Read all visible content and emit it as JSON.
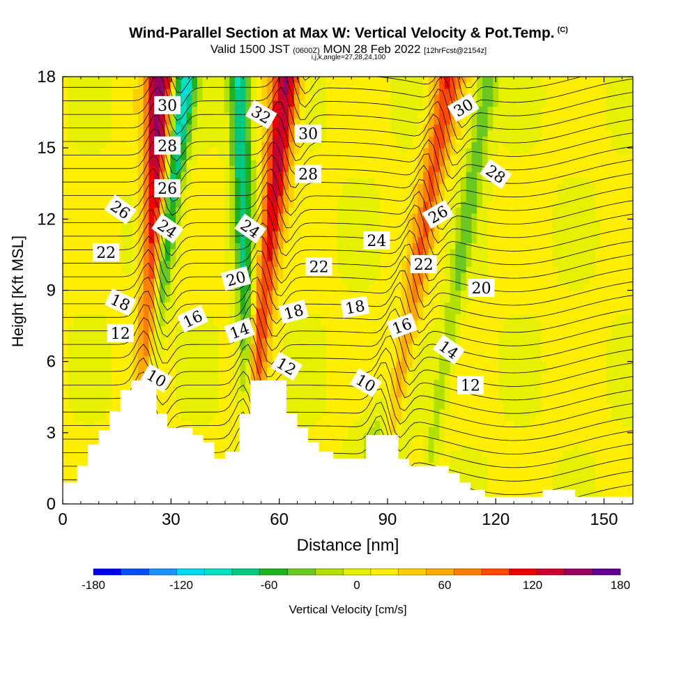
{
  "title": "Wind-Parallel Section at Max W: Vertical Velocity & Pot.Temp.",
  "title_mark": "(C)",
  "subtitle": {
    "valid": "Valid 1500 JST",
    "utc": "(0600Z)",
    "date": "MON 28 Feb 2022",
    "forecast": "[12hrFcst@2154z]"
  },
  "subtitle2": "i,j,k,angle=27,28,24,100",
  "chart_data": {
    "type": "heatmap",
    "xlabel": "Distance [nm]",
    "ylabel": "Height [Kft MSL]",
    "xlim": [
      0,
      158
    ],
    "ylim": [
      0,
      18
    ],
    "x_ticks": [
      0,
      30,
      60,
      90,
      120,
      150
    ],
    "y_ticks": [
      0,
      3,
      6,
      9,
      12,
      15,
      18
    ],
    "colorbar": {
      "label": "Vertical Velocity [cm/s]",
      "range": [
        -180,
        180
      ],
      "tick_labels": [
        "-180",
        "-120",
        "-60",
        "0",
        "60",
        "120",
        "180"
      ],
      "colors": [
        "#0000ee",
        "#0a4ff0",
        "#1e90ff",
        "#00d8f0",
        "#00e0c0",
        "#00c880",
        "#20b020",
        "#6cc820",
        "#b4e000",
        "#e6f000",
        "#ffee00",
        "#ffd000",
        "#ffaa00",
        "#ff8000",
        "#ff4800",
        "#ee0000",
        "#c80030",
        "#960060",
        "#600090"
      ]
    },
    "updraft_bands": [
      {
        "x_bottom": 22,
        "x_top": 27,
        "peak_w": 150
      },
      {
        "x_bottom": 50,
        "x_top": 62,
        "peak_w": 140
      },
      {
        "x_bottom": 88,
        "x_top": 107,
        "peak_w": 90
      }
    ],
    "downdraft_bands": [
      {
        "x_bottom": 20,
        "x_top": 34,
        "min_w": -120
      },
      {
        "x_bottom": 52,
        "x_top": 49,
        "min_w": -110
      },
      {
        "x_bottom": 100,
        "x_top": 118,
        "min_w": -60
      }
    ],
    "terrain": [
      [
        0,
        0.9
      ],
      [
        4,
        1.6
      ],
      [
        7,
        2.5
      ],
      [
        10,
        3.1
      ],
      [
        13,
        3.9
      ],
      [
        16,
        4.8
      ],
      [
        19,
        5.2
      ],
      [
        26,
        3.8
      ],
      [
        29,
        3.2
      ],
      [
        36,
        2.9
      ],
      [
        39,
        2.6
      ],
      [
        42,
        1.9
      ],
      [
        45,
        2.2
      ],
      [
        49,
        3.8
      ],
      [
        52,
        5.2
      ],
      [
        62,
        3.8
      ],
      [
        65,
        3.2
      ],
      [
        68,
        2.6
      ],
      [
        71,
        2.2
      ],
      [
        75,
        1.9
      ],
      [
        84,
        2.9
      ],
      [
        93,
        1.9
      ],
      [
        96,
        1.6
      ],
      [
        107,
        1.3
      ],
      [
        110,
        0.9
      ],
      [
        113,
        0.6
      ],
      [
        117,
        0.3
      ],
      [
        133,
        0.6
      ],
      [
        142,
        0.3
      ],
      [
        158,
        0.3
      ]
    ],
    "contour_labels": [
      {
        "text": "30",
        "x": 29,
        "y": 16.8,
        "angle": 0
      },
      {
        "text": "28",
        "x": 29,
        "y": 15.1,
        "angle": 0
      },
      {
        "text": "26",
        "x": 29,
        "y": 13.3,
        "angle": 0
      },
      {
        "text": "32",
        "x": 55,
        "y": 16.4,
        "angle": 30
      },
      {
        "text": "30",
        "x": 68,
        "y": 15.6,
        "angle": 0
      },
      {
        "text": "28",
        "x": 68,
        "y": 13.9,
        "angle": 0
      },
      {
        "text": "30",
        "x": 111,
        "y": 16.7,
        "angle": -30
      },
      {
        "text": "28",
        "x": 120,
        "y": 13.9,
        "angle": 35
      },
      {
        "text": "26",
        "x": 16,
        "y": 12.4,
        "angle": 35
      },
      {
        "text": "24",
        "x": 29,
        "y": 11.6,
        "angle": 35
      },
      {
        "text": "24",
        "x": 52,
        "y": 11.6,
        "angle": 35
      },
      {
        "text": "26",
        "x": 104,
        "y": 12.2,
        "angle": -30
      },
      {
        "text": "24",
        "x": 87,
        "y": 11.1,
        "angle": 0
      },
      {
        "text": "22",
        "x": 12,
        "y": 10.6,
        "angle": 0
      },
      {
        "text": "22",
        "x": 71,
        "y": 10.0,
        "angle": 0
      },
      {
        "text": "22",
        "x": 100,
        "y": 10.1,
        "angle": 0
      },
      {
        "text": "20",
        "x": 48,
        "y": 9.5,
        "angle": -15
      },
      {
        "text": "20",
        "x": 116,
        "y": 9.1,
        "angle": 0
      },
      {
        "text": "18",
        "x": 16,
        "y": 8.5,
        "angle": 25
      },
      {
        "text": "18",
        "x": 64,
        "y": 8.1,
        "angle": -15
      },
      {
        "text": "18",
        "x": 81,
        "y": 8.3,
        "angle": -10
      },
      {
        "text": "16",
        "x": 36,
        "y": 7.8,
        "angle": -25
      },
      {
        "text": "16",
        "x": 94,
        "y": 7.5,
        "angle": -20
      },
      {
        "text": "14",
        "x": 49,
        "y": 7.3,
        "angle": -20
      },
      {
        "text": "14",
        "x": 107,
        "y": 6.5,
        "angle": 35
      },
      {
        "text": "12",
        "x": 16,
        "y": 7.2,
        "angle": 0
      },
      {
        "text": "12",
        "x": 62,
        "y": 5.8,
        "angle": 30
      },
      {
        "text": "12",
        "x": 113,
        "y": 5.0,
        "angle": 0
      },
      {
        "text": "10",
        "x": 26,
        "y": 5.3,
        "angle": 30
      },
      {
        "text": "10",
        "x": 84,
        "y": 5.1,
        "angle": 30
      }
    ]
  }
}
